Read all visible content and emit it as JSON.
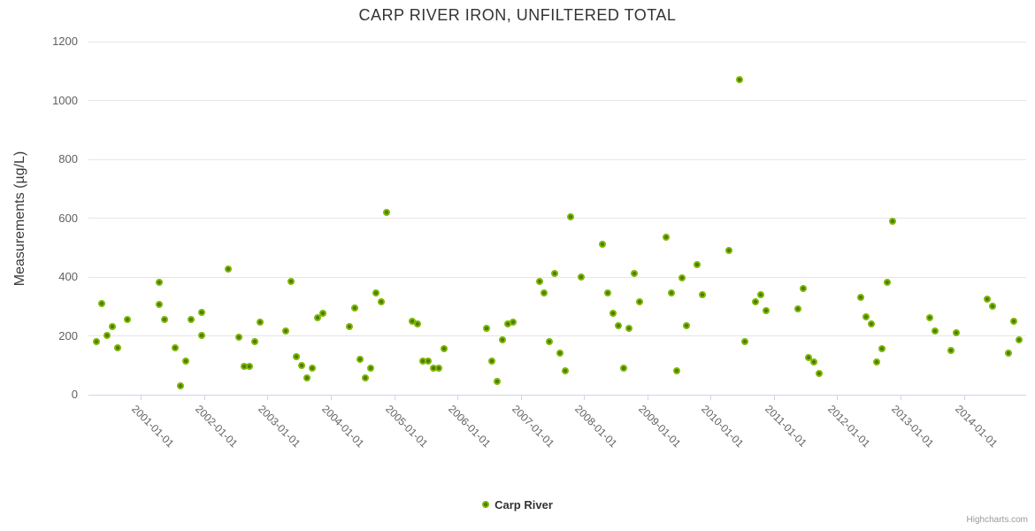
{
  "title": "CARP RIVER IRON, UNFILTERED TOTAL",
  "y_axis": {
    "title": "Measurements (µg/L)",
    "ticks": [
      0,
      200,
      400,
      600,
      800,
      1000,
      1200
    ]
  },
  "x_axis": {
    "labels": [
      "2001-01-01",
      "2002-01-01",
      "2003-01-01",
      "2004-01-01",
      "2005-01-01",
      "2006-01-01",
      "2007-01-01",
      "2008-01-01",
      "2009-01-01",
      "2010-01-01",
      "2011-01-01",
      "2012-01-01",
      "2013-01-01",
      "2014-01-01"
    ]
  },
  "legend": {
    "label": "Carp River"
  },
  "credits": "Highcharts.com",
  "colors": {
    "title_text": "#333333",
    "axis_label_text": "#606060",
    "gridline": "#e6e6e6",
    "axis_line": "#ccd6eb",
    "marker_fill": "#4F7A05",
    "marker_border": "#7DB804",
    "legend_text": "#333333",
    "credits_text": "#999999"
  },
  "chart_data": {
    "type": "scatter",
    "title": "CARP RIVER IRON, UNFILTERED TOTAL",
    "xlabel": "",
    "ylabel": "Measurements (µg/L)",
    "ylim": [
      0,
      1200
    ],
    "xlim": [
      "2000-03",
      "2015-01"
    ],
    "grid": true,
    "legend_position": "bottom",
    "series": [
      {
        "name": "Carp River",
        "color": "#7DB804",
        "points": [
          [
            "2000-04",
            180
          ],
          [
            "2000-05",
            310
          ],
          [
            "2000-06",
            200
          ],
          [
            "2000-07",
            230
          ],
          [
            "2000-08",
            160
          ],
          [
            "2000-10",
            255
          ],
          [
            "2001-04",
            305
          ],
          [
            "2001-04",
            380
          ],
          [
            "2001-05",
            255
          ],
          [
            "2001-07",
            160
          ],
          [
            "2001-08",
            30
          ],
          [
            "2001-09",
            115
          ],
          [
            "2001-10",
            255
          ],
          [
            "2001-12",
            280
          ],
          [
            "2001-12",
            200
          ],
          [
            "2002-05",
            425
          ],
          [
            "2002-07",
            195
          ],
          [
            "2002-08",
            95
          ],
          [
            "2002-09",
            95
          ],
          [
            "2002-10",
            180
          ],
          [
            "2002-11",
            245
          ],
          [
            "2003-04",
            215
          ],
          [
            "2003-05",
            385
          ],
          [
            "2003-06",
            130
          ],
          [
            "2003-07",
            100
          ],
          [
            "2003-08",
            55
          ],
          [
            "2003-09",
            90
          ],
          [
            "2003-10",
            260
          ],
          [
            "2003-11",
            275
          ],
          [
            "2004-04",
            230
          ],
          [
            "2004-05",
            295
          ],
          [
            "2004-06",
            120
          ],
          [
            "2004-07",
            55
          ],
          [
            "2004-08",
            90
          ],
          [
            "2004-09",
            345
          ],
          [
            "2004-10",
            315
          ],
          [
            "2004-11",
            620
          ],
          [
            "2005-04",
            250
          ],
          [
            "2005-05",
            240
          ],
          [
            "2005-06",
            115
          ],
          [
            "2005-07",
            115
          ],
          [
            "2005-08",
            90
          ],
          [
            "2005-09",
            90
          ],
          [
            "2005-10",
            155
          ],
          [
            "2006-06",
            225
          ],
          [
            "2006-07",
            115
          ],
          [
            "2006-08",
            45
          ],
          [
            "2006-09",
            185
          ],
          [
            "2006-10",
            240
          ],
          [
            "2006-11",
            245
          ],
          [
            "2007-04",
            385
          ],
          [
            "2007-05",
            345
          ],
          [
            "2007-06",
            180
          ],
          [
            "2007-07",
            410
          ],
          [
            "2007-08",
            140
          ],
          [
            "2007-09",
            80
          ],
          [
            "2007-10",
            605
          ],
          [
            "2007-12",
            400
          ],
          [
            "2008-04",
            510
          ],
          [
            "2008-05",
            345
          ],
          [
            "2008-06",
            275
          ],
          [
            "2008-07",
            235
          ],
          [
            "2008-08",
            90
          ],
          [
            "2008-09",
            225
          ],
          [
            "2008-10",
            410
          ],
          [
            "2008-11",
            315
          ],
          [
            "2009-04",
            535
          ],
          [
            "2009-05",
            345
          ],
          [
            "2009-06",
            80
          ],
          [
            "2009-07",
            395
          ],
          [
            "2009-08",
            235
          ],
          [
            "2009-10",
            440
          ],
          [
            "2009-11",
            340
          ],
          [
            "2010-04",
            490
          ],
          [
            "2010-06",
            1070
          ],
          [
            "2010-07",
            180
          ],
          [
            "2010-09",
            315
          ],
          [
            "2010-10",
            340
          ],
          [
            "2010-11",
            285
          ],
          [
            "2011-05",
            290
          ],
          [
            "2011-06",
            360
          ],
          [
            "2011-07",
            125
          ],
          [
            "2011-08",
            110
          ],
          [
            "2011-09",
            70
          ],
          [
            "2012-05",
            330
          ],
          [
            "2012-06",
            265
          ],
          [
            "2012-07",
            240
          ],
          [
            "2012-08",
            110
          ],
          [
            "2012-09",
            155
          ],
          [
            "2012-10",
            380
          ],
          [
            "2012-11",
            590
          ],
          [
            "2013-06",
            260
          ],
          [
            "2013-07",
            215
          ],
          [
            "2013-10",
            150
          ],
          [
            "2013-11",
            210
          ],
          [
            "2014-05",
            325
          ],
          [
            "2014-06",
            300
          ],
          [
            "2014-09",
            140
          ],
          [
            "2014-10",
            250
          ],
          [
            "2014-11",
            185
          ]
        ]
      }
    ]
  }
}
